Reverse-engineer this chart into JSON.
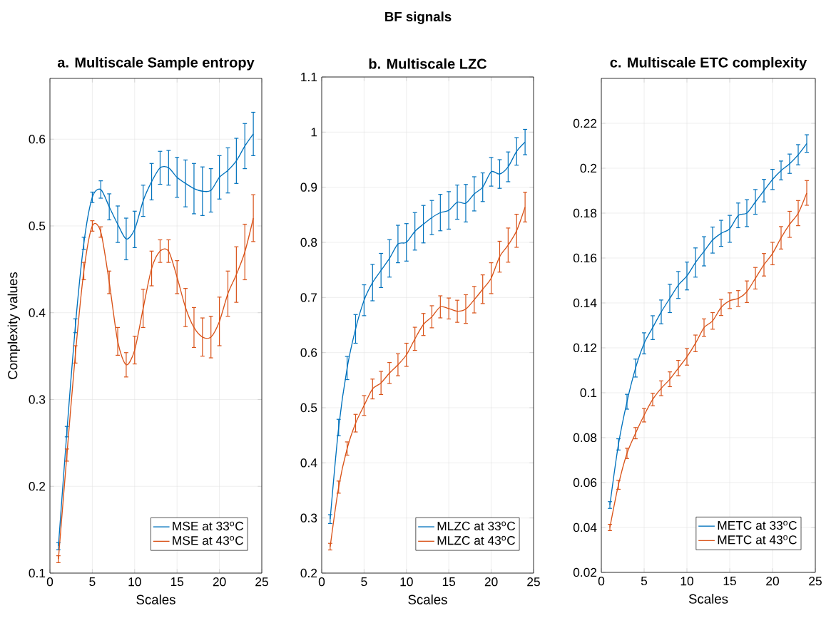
{
  "chart_data": [
    {
      "type": "line",
      "title": "a. Multiscale Sample entropy",
      "xlabel": "Scales",
      "ylabel": "Complexity values",
      "annotations": [
        "BF signals"
      ],
      "x": [
        1,
        2,
        3,
        4,
        5,
        6,
        7,
        8,
        9,
        10,
        11,
        12,
        13,
        14,
        15,
        16,
        17,
        18,
        19,
        20,
        21,
        22,
        23,
        24
      ],
      "series": [
        {
          "name": "MSE at 33$^{o}$C",
          "color": "#0072bd",
          "values": [
            0.131,
            0.263,
            0.385,
            0.48,
            0.533,
            0.542,
            0.522,
            0.502,
            0.485,
            0.496,
            0.529,
            0.551,
            0.567,
            0.567,
            0.556,
            0.549,
            0.543,
            0.54,
            0.541,
            0.556,
            0.564,
            0.575,
            0.592,
            0.606
          ],
          "errors": [
            0.004,
            0.006,
            0.008,
            0.007,
            0.006,
            0.01,
            0.015,
            0.021,
            0.024,
            0.021,
            0.018,
            0.021,
            0.019,
            0.02,
            0.023,
            0.027,
            0.029,
            0.028,
            0.025,
            0.025,
            0.026,
            0.026,
            0.026,
            0.025
          ]
        },
        {
          "name": "MSE at 43$^{o}$C",
          "color": "#d95319",
          "values": [
            0.116,
            0.236,
            0.352,
            0.448,
            0.5,
            0.493,
            0.435,
            0.367,
            0.34,
            0.357,
            0.405,
            0.451,
            0.471,
            0.471,
            0.441,
            0.406,
            0.383,
            0.372,
            0.372,
            0.39,
            0.422,
            0.444,
            0.47,
            0.509
          ],
          "errors": [
            0.004,
            0.007,
            0.01,
            0.01,
            0.006,
            0.006,
            0.013,
            0.016,
            0.014,
            0.016,
            0.022,
            0.02,
            0.013,
            0.013,
            0.019,
            0.022,
            0.023,
            0.022,
            0.024,
            0.028,
            0.026,
            0.032,
            0.032,
            0.027
          ]
        }
      ],
      "xlim": [
        0,
        25
      ],
      "xticks": [
        0,
        5,
        10,
        15,
        20,
        25
      ],
      "ylim": [
        0.1,
        0.67
      ],
      "yticks": [
        0.1,
        0.2,
        0.3,
        0.4,
        0.5,
        0.6
      ],
      "grid": true,
      "legend": "bottom right"
    },
    {
      "type": "line",
      "title": "b. Multiscale LZC",
      "xlabel": "Scales",
      "x": [
        1,
        2,
        3,
        4,
        5,
        6,
        7,
        8,
        9,
        10,
        11,
        12,
        13,
        14,
        15,
        16,
        17,
        18,
        19,
        20,
        21,
        22,
        23,
        24
      ],
      "series": [
        {
          "name": "MLZC at 33$^{o}$C",
          "color": "#0072bd",
          "values": [
            0.298,
            0.464,
            0.572,
            0.643,
            0.695,
            0.727,
            0.749,
            0.771,
            0.797,
            0.8,
            0.82,
            0.833,
            0.845,
            0.854,
            0.858,
            0.873,
            0.871,
            0.888,
            0.9,
            0.928,
            0.924,
            0.937,
            0.965,
            0.982
          ],
          "errors": [
            0.008,
            0.015,
            0.021,
            0.026,
            0.028,
            0.033,
            0.031,
            0.034,
            0.034,
            0.034,
            0.034,
            0.034,
            0.031,
            0.033,
            0.034,
            0.031,
            0.034,
            0.031,
            0.026,
            0.026,
            0.026,
            0.027,
            0.025,
            0.023
          ]
        },
        {
          "name": "MLZC at 43$^{o}$C",
          "color": "#d95319",
          "values": [
            0.248,
            0.356,
            0.426,
            0.472,
            0.504,
            0.534,
            0.545,
            0.563,
            0.578,
            0.596,
            0.625,
            0.651,
            0.665,
            0.683,
            0.68,
            0.675,
            0.679,
            0.696,
            0.715,
            0.735,
            0.774,
            0.795,
            0.821,
            0.864
          ],
          "errors": [
            0.006,
            0.011,
            0.012,
            0.016,
            0.018,
            0.018,
            0.021,
            0.019,
            0.02,
            0.021,
            0.021,
            0.02,
            0.02,
            0.02,
            0.019,
            0.02,
            0.026,
            0.024,
            0.026,
            0.028,
            0.028,
            0.031,
            0.03,
            0.027
          ]
        }
      ],
      "xlim": [
        0,
        25
      ],
      "xticks": [
        0,
        5,
        10,
        15,
        20,
        25
      ],
      "ylim": [
        0.2,
        1.1
      ],
      "yticks": [
        0.2,
        0.3,
        0.4,
        0.5,
        0.6,
        0.7,
        0.8,
        0.9,
        1,
        1.1
      ],
      "grid": true,
      "legend": "bottom right"
    },
    {
      "type": "line",
      "title": "c. Multiscale ETC complexity",
      "xlabel": "Scales",
      "x": [
        1,
        2,
        3,
        4,
        5,
        6,
        7,
        8,
        9,
        10,
        11,
        12,
        13,
        14,
        15,
        16,
        17,
        18,
        19,
        20,
        21,
        22,
        23,
        24
      ],
      "series": [
        {
          "name": "METC at 33$^{o}$C",
          "color": "#0072bd",
          "values": [
            0.05,
            0.077,
            0.096,
            0.111,
            0.122,
            0.129,
            0.136,
            0.142,
            0.148,
            0.152,
            0.158,
            0.163,
            0.168,
            0.171,
            0.173,
            0.179,
            0.18,
            0.185,
            0.19,
            0.195,
            0.199,
            0.202,
            0.206,
            0.211
          ],
          "errors": [
            0.0015,
            0.0025,
            0.0033,
            0.004,
            0.0047,
            0.0053,
            0.0053,
            0.0063,
            0.006,
            0.0062,
            0.0065,
            0.0065,
            0.0058,
            0.0058,
            0.006,
            0.0055,
            0.006,
            0.0055,
            0.005,
            0.0045,
            0.0042,
            0.0043,
            0.0045,
            0.0039
          ]
        },
        {
          "name": "METC at 43$^{o}$C",
          "color": "#d95319",
          "values": [
            0.04,
            0.059,
            0.073,
            0.082,
            0.09,
            0.097,
            0.102,
            0.106,
            0.111,
            0.116,
            0.122,
            0.129,
            0.132,
            0.138,
            0.141,
            0.142,
            0.145,
            0.151,
            0.157,
            0.162,
            0.169,
            0.175,
            0.18,
            0.189
          ],
          "errors": [
            0.0014,
            0.002,
            0.0023,
            0.0025,
            0.003,
            0.0028,
            0.0033,
            0.0033,
            0.0034,
            0.0037,
            0.0037,
            0.0039,
            0.0037,
            0.0036,
            0.0035,
            0.0035,
            0.0048,
            0.0048,
            0.005,
            0.005,
            0.005,
            0.0058,
            0.0056,
            0.0055
          ]
        }
      ],
      "xlim": [
        0,
        25
      ],
      "xticks": [
        0,
        5,
        10,
        15,
        20,
        25
      ],
      "ylim": [
        0.02,
        0.24
      ],
      "yticks": [
        0.02,
        0.04,
        0.06,
        0.08,
        0.1,
        0.12,
        0.14,
        0.16,
        0.18,
        0.2,
        0.22
      ],
      "grid": true,
      "legend": "bottom right"
    }
  ]
}
